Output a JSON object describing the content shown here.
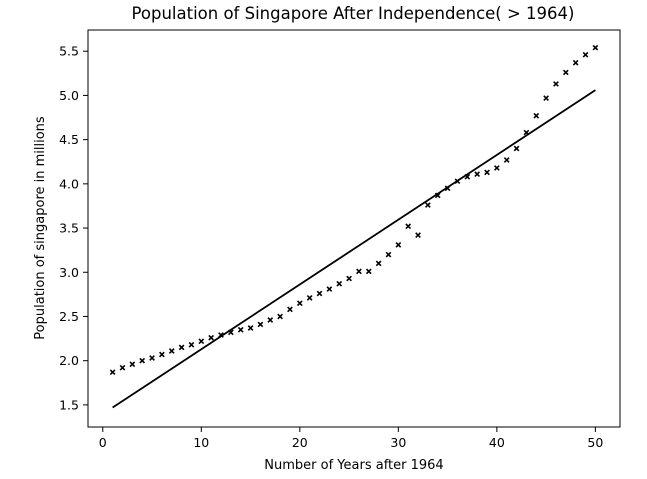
{
  "chart_data": {
    "type": "scatter",
    "title": "Population of Singapore After Independence( > 1964)",
    "xlabel": "Number of Years after 1964",
    "ylabel": "Population of singapore in millions",
    "xlim": [
      -1.5,
      52.5
    ],
    "ylim": [
      1.25,
      5.74
    ],
    "xticks": [
      0,
      10,
      20,
      30,
      40,
      50
    ],
    "yticks": [
      1.5,
      2.0,
      2.5,
      3.0,
      3.5,
      4.0,
      4.5,
      5.0,
      5.5
    ],
    "xtick_labels": [
      "0",
      "10",
      "20",
      "30",
      "40",
      "50"
    ],
    "ytick_labels": [
      "1.5",
      "2.0",
      "2.5",
      "3.0",
      "3.5",
      "4.0",
      "4.5",
      "5.0",
      "5.5"
    ],
    "grid": false,
    "colors": {
      "points": "#000000",
      "fit_line": "#000000",
      "axes": "#000000"
    },
    "series": [
      {
        "type": "scatter",
        "marker": "x",
        "x": [
          1,
          2,
          3,
          4,
          5,
          6,
          7,
          8,
          9,
          10,
          11,
          12,
          13,
          14,
          15,
          16,
          17,
          18,
          19,
          20,
          21,
          22,
          23,
          24,
          25,
          26,
          27,
          28,
          29,
          30,
          31,
          32,
          33,
          34,
          35,
          36,
          37,
          38,
          39,
          40,
          41,
          42,
          43,
          44,
          45,
          46,
          47,
          48,
          49,
          50
        ],
        "y": [
          1.87,
          1.92,
          1.96,
          2.0,
          2.03,
          2.07,
          2.11,
          2.15,
          2.18,
          2.22,
          2.26,
          2.29,
          2.32,
          2.35,
          2.37,
          2.41,
          2.46,
          2.5,
          2.58,
          2.65,
          2.71,
          2.76,
          2.81,
          2.87,
          2.93,
          3.01,
          3.01,
          3.1,
          3.2,
          3.31,
          3.52,
          3.42,
          3.76,
          3.87,
          3.95,
          4.03,
          4.08,
          4.11,
          4.13,
          4.18,
          4.27,
          4.4,
          4.58,
          4.77,
          4.97,
          5.13,
          5.26,
          5.37,
          5.46,
          5.54
        ]
      },
      {
        "type": "line",
        "x": [
          1,
          50
        ],
        "y": [
          1.47,
          5.06
        ]
      }
    ]
  }
}
